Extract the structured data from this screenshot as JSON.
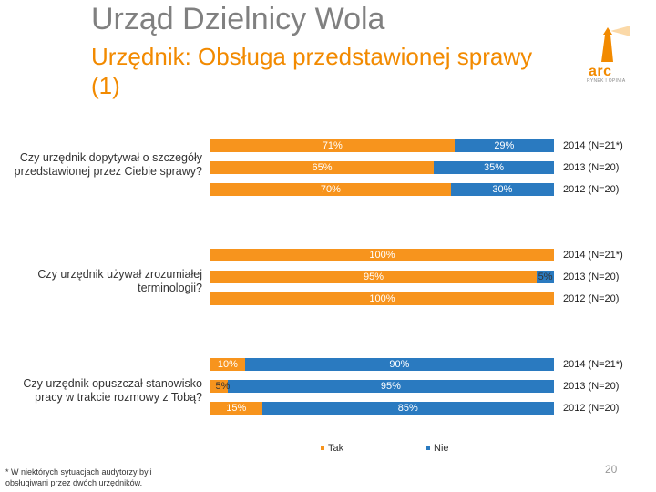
{
  "header": {
    "title": "Urząd Dzielnicy Wola",
    "subtitle": "Urzędnik: Obsługa przedstawionej sprawy (1)"
  },
  "logo": {
    "text": "arc",
    "tagline": "RYNEK I OPINIA"
  },
  "chart_data": {
    "type": "bar",
    "orientation": "horizontal",
    "stacked": true,
    "normalized": true,
    "xlim": [
      0,
      100
    ],
    "legend_position": "bottom",
    "legend": [
      "Tak",
      "Nie"
    ],
    "colors": {
      "Tak": "#f7941d",
      "Nie": "#2a7ac0"
    },
    "groups": [
      {
        "question": "Czy urzędnik dopytywał o szczegóły przedstawionej przez Ciebie sprawy?",
        "rows": [
          {
            "label": "2014 (N=21*)",
            "tak": 71,
            "nie": 29,
            "tak_text": "71%",
            "nie_text": "29%"
          },
          {
            "label": "2013 (N=20)",
            "tak": 65,
            "nie": 35,
            "tak_text": "65%",
            "nie_text": "35%"
          },
          {
            "label": "2012 (N=20)",
            "tak": 70,
            "nie": 30,
            "tak_text": "70%",
            "nie_text": "30%"
          }
        ]
      },
      {
        "question": "Czy urzędnik używał zrozumiałej terminologii?",
        "rows": [
          {
            "label": "2014 (N=21*)",
            "tak": 100,
            "nie": 0,
            "tak_text": "100%",
            "nie_text": ""
          },
          {
            "label": "2013 (N=20)",
            "tak": 95,
            "nie": 5,
            "tak_text": "95%",
            "nie_text": "5%"
          },
          {
            "label": "2012 (N=20)",
            "tak": 100,
            "nie": 0,
            "tak_text": "100%",
            "nie_text": ""
          }
        ]
      },
      {
        "question": "Czy urzędnik opuszczał stanowisko pracy w trakcie rozmowy z Tobą?",
        "rows": [
          {
            "label": "2014 (N=21*)",
            "tak": 10,
            "nie": 90,
            "tak_text": "10%",
            "nie_text": "90%"
          },
          {
            "label": "2013 (N=20)",
            "tak": 5,
            "nie": 95,
            "tak_text": "5%",
            "nie_text": "95%"
          },
          {
            "label": "2012 (N=20)",
            "tak": 15,
            "nie": 85,
            "tak_text": "15%",
            "nie_text": "85%"
          }
        ]
      }
    ]
  },
  "footnote": "* W niektórych sytuacjach audytorzy byli obsługiwani przez dwóch urzędników.",
  "page_number": "20"
}
